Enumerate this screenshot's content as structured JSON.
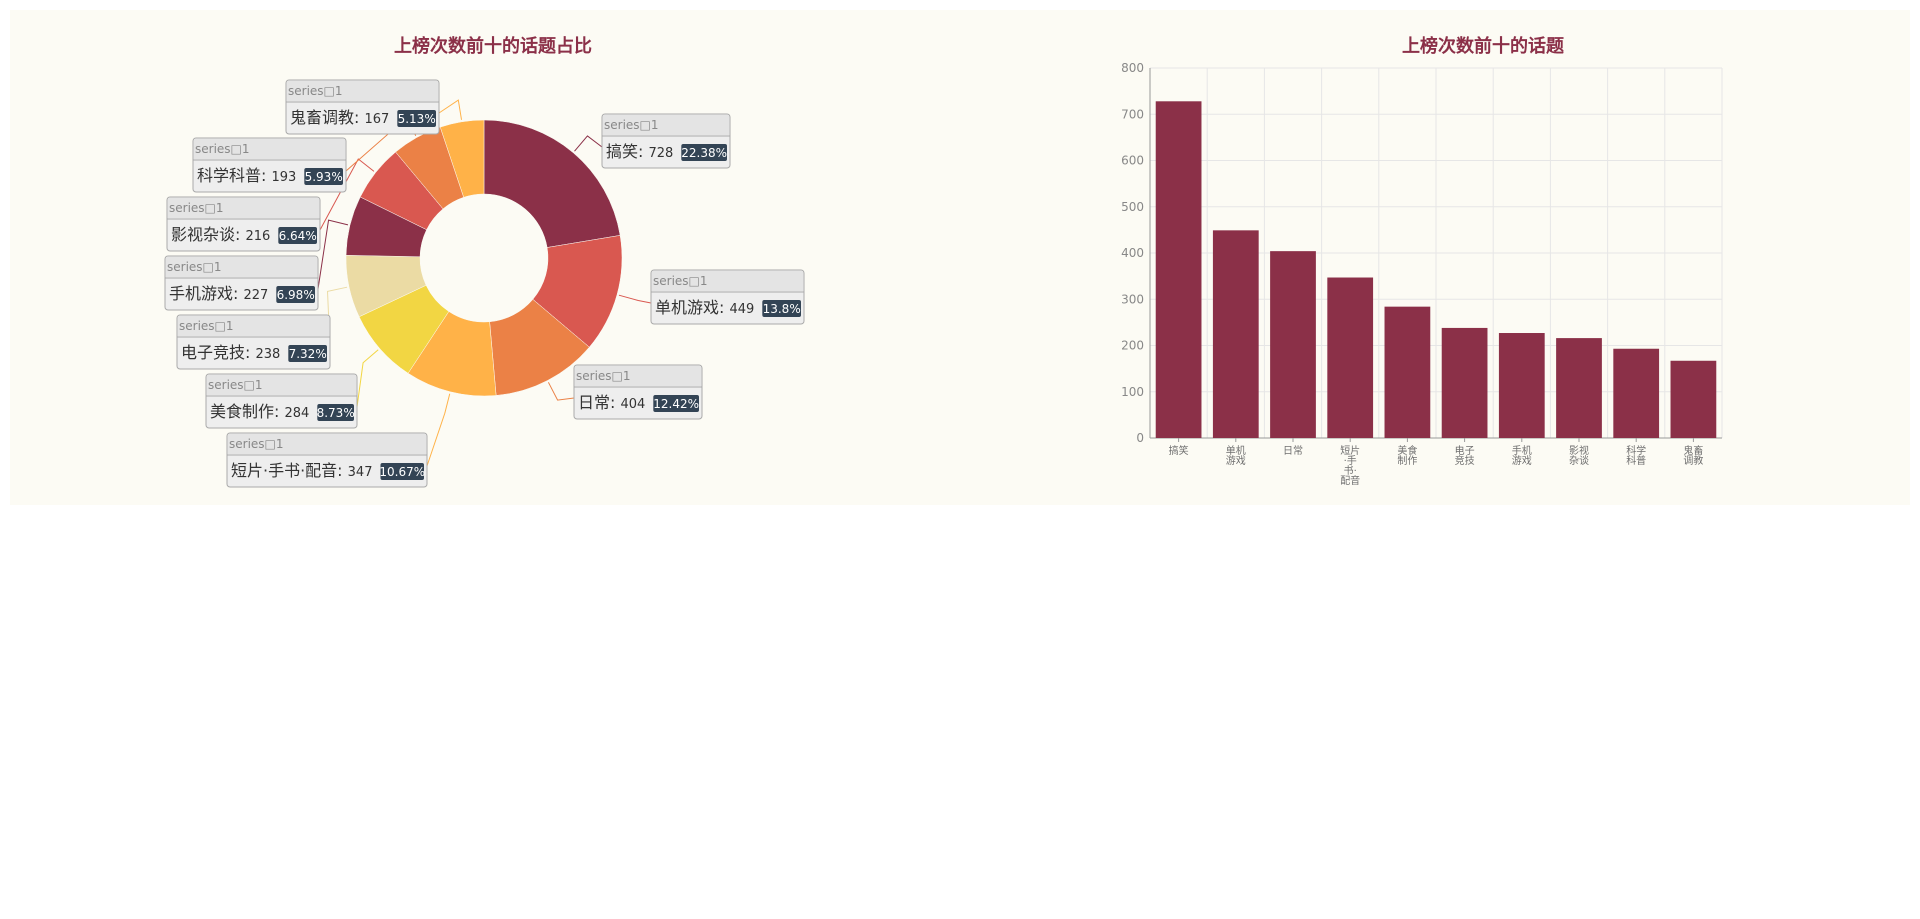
{
  "chart_data": [
    {
      "type": "pie",
      "title": "上榜次数前十的话题占比",
      "series_label": "series□1",
      "colors": [
        "#8b3048",
        "#d95850",
        "#eb8146",
        "#ffb248",
        "#f2d643",
        "#ebdba4",
        "#8b3048",
        "#d95850",
        "#eb8146",
        "#ffb248"
      ],
      "slices": [
        {
          "name": "搞笑",
          "value": 728,
          "percent": "22.38%"
        },
        {
          "name": "单机游戏",
          "value": 449,
          "percent": "13.8%"
        },
        {
          "name": "日常",
          "value": 404,
          "percent": "12.42%"
        },
        {
          "name": "短片·手书·配音",
          "value": 347,
          "percent": "10.67%"
        },
        {
          "name": "美食制作",
          "value": 284,
          "percent": "8.73%"
        },
        {
          "name": "电子竞技",
          "value": 238,
          "percent": "7.32%"
        },
        {
          "name": "手机游戏",
          "value": 227,
          "percent": "6.98%"
        },
        {
          "name": "影视杂谈",
          "value": 216,
          "percent": "6.64%"
        },
        {
          "name": "科学科普",
          "value": 193,
          "percent": "5.93%"
        },
        {
          "name": "鬼畜调教",
          "value": 167,
          "percent": "5.13%"
        }
      ]
    },
    {
      "type": "bar",
      "title": "上榜次数前十的话题",
      "color": "#8b3048",
      "categories": [
        "搞笑",
        "单机\n游戏",
        "日常",
        "短片\n·手\n书·\n配音",
        "美食\n制作",
        "电子\n竞技",
        "手机\n游戏",
        "影视\n杂谈",
        "科学\n科普",
        "鬼畜\n调教"
      ],
      "values": [
        728,
        449,
        404,
        347,
        284,
        238,
        227,
        216,
        193,
        167
      ],
      "ylim": [
        0,
        800
      ],
      "yticks": [
        "0",
        "100",
        "200",
        "300",
        "400",
        "500",
        "600",
        "700",
        "800"
      ],
      "grid": true
    }
  ]
}
